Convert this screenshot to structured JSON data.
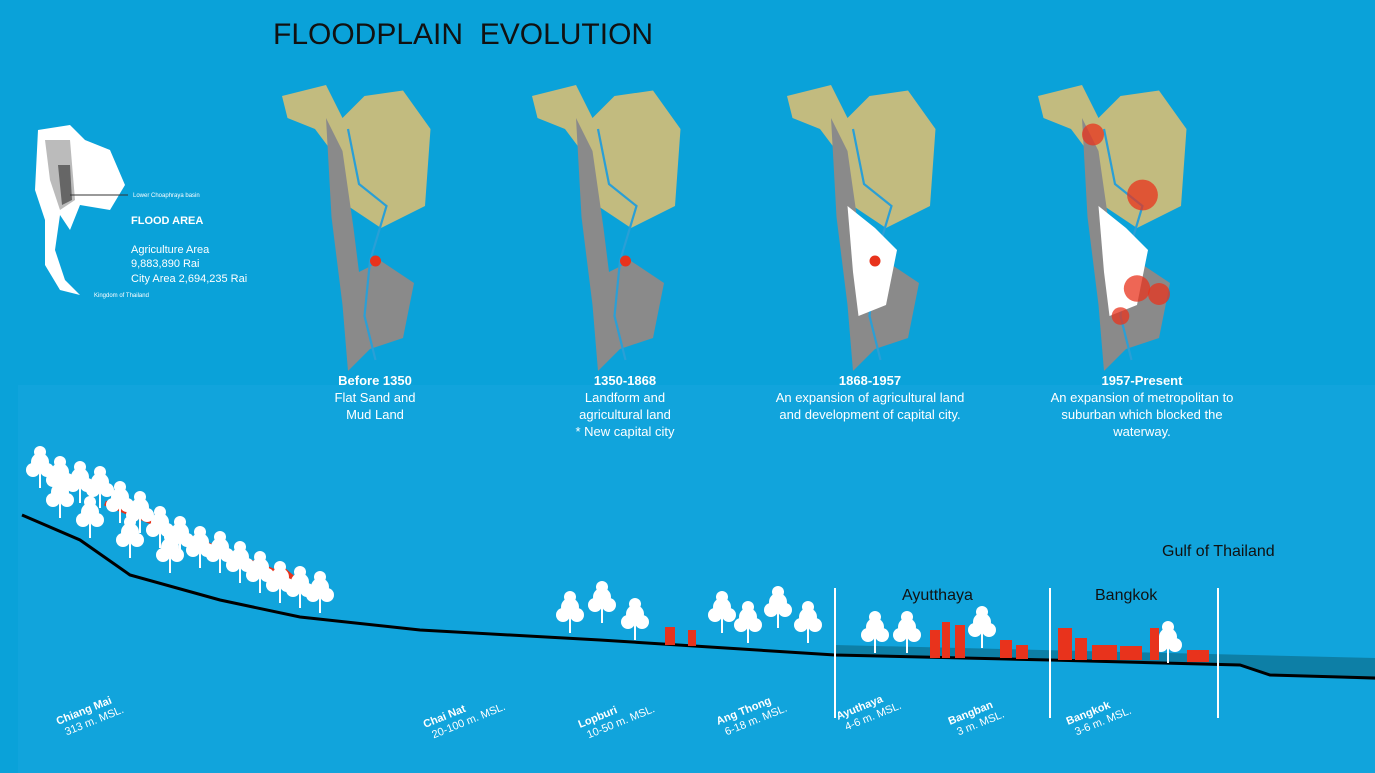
{
  "title": "FLOODPLAIN  EVOLUTION",
  "inset": {
    "basin_label": "Lower Choaphraya basin",
    "flood_area": "FLOOD AREA",
    "agriculture_label": "Agriculture Area",
    "agriculture_value": "9,883,890 Rai",
    "city_area": "City Area 2,694,235 Rai",
    "country": "Kingdom of Thailand"
  },
  "panels": [
    {
      "period": "Before 1350",
      "lines": [
        "Flat Sand and",
        "Mud Land"
      ]
    },
    {
      "period": "1350-1868",
      "lines": [
        "Landform and",
        "agricultural land",
        "* New capital city"
      ]
    },
    {
      "period": "1868-1957",
      "lines": [
        "An expansion of agricultural land",
        "and development of capital city."
      ]
    },
    {
      "period": "1957-Present",
      "lines": [
        "An expansion of metropolitan to",
        "suburban which blocked the",
        "waterway."
      ]
    }
  ],
  "profile": {
    "sea": "Gulf of Thailand",
    "regions": [
      "Ayutthaya",
      "Bangkok"
    ],
    "locations": [
      {
        "name": "Chiang Mai",
        "elevation": "313 m. MSL."
      },
      {
        "name": "Chai Nat",
        "elevation": "20-100 m. MSL."
      },
      {
        "name": "Lopburi",
        "elevation": "10-50 m. MSL."
      },
      {
        "name": "Ang Thong",
        "elevation": "6-18 m. MSL."
      },
      {
        "name": "Ayuthaya",
        "elevation": "4-6 m. MSL."
      },
      {
        "name": "Bangban",
        "elevation": "3 m. MSL."
      },
      {
        "name": "Bangkok",
        "elevation": "3-6 m. MSL."
      }
    ]
  }
}
